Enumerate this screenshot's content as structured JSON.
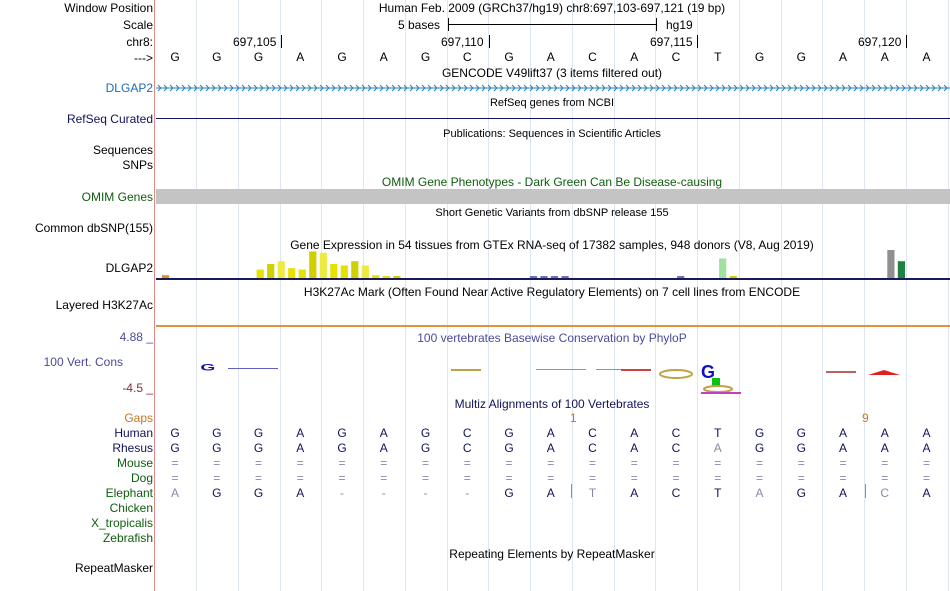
{
  "header": {
    "window_position_label": "Window Position",
    "window_position_value": "Human Feb. 2009 (GRCh37/hg19)   chr8:697,103-697,121 (19 bp)",
    "scale_label": "Scale",
    "scale_value": "5 bases",
    "scale_assembly": "hg19",
    "chr_label": "chr8:",
    "arrow_label": "--->",
    "positions": [
      "697,105",
      "697,110",
      "697,115",
      "697,120"
    ]
  },
  "sequence": [
    "G",
    "G",
    "G",
    "A",
    "G",
    "A",
    "G",
    "C",
    "G",
    "A",
    "C",
    "A",
    "C",
    "T",
    "G",
    "G",
    "A",
    "A",
    "A"
  ],
  "tracks": {
    "gencode": {
      "title": "GENCODE V49lift37 (3 items filtered out)",
      "label": "DLGAP2"
    },
    "refseq": {
      "title": "RefSeq genes from NCBI",
      "label": "RefSeq Curated"
    },
    "publications": {
      "title": "Publications: Sequences in Scientific Articles",
      "label1": "Sequences",
      "label2": "SNPs"
    },
    "omim": {
      "title": "OMIM Gene Phenotypes - Dark Green Can Be Disease-causing",
      "label": "OMIM Genes"
    },
    "dbsnp": {
      "title": "Short Genetic Variants from dbSNP release 155",
      "label": "Common dbSNP(155)"
    },
    "gtex": {
      "title": "Gene Expression in 54 tissues from GTEx RNA-seq of 17382 samples, 948 donors (V8, Aug 2019)",
      "label": "DLGAP2",
      "bars": [
        0.1,
        0,
        0,
        0,
        0,
        0,
        0,
        0,
        0,
        0.3,
        0.5,
        0.6,
        0.35,
        0.3,
        0.95,
        0.9,
        0.5,
        0.45,
        0.6,
        0.45,
        0.1,
        0.05,
        0.05,
        0,
        0,
        0,
        0,
        0,
        0,
        0,
        0,
        0,
        0,
        0,
        0,
        0.05,
        0.05,
        0.05,
        0.05,
        0,
        0,
        0,
        0,
        0,
        0,
        0,
        0,
        0,
        0,
        0.05,
        0,
        0,
        0,
        0.7,
        0.05,
        0,
        0,
        0,
        0,
        0,
        0,
        0,
        0,
        0,
        0,
        0,
        0,
        0,
        0,
        1.0,
        0.6
      ]
    },
    "h3k27ac": {
      "title": "H3K27Ac Mark (Often Found Near Active Regulatory Elements) on 7 cell lines from ENCODE",
      "label": "Layered H3K27Ac"
    },
    "phylop": {
      "title": "100 vertebrates Basewise Conservation by PhyloP",
      "label": "100 Vert. Cons",
      "max": "4.88 _",
      "min": "-4.5 _"
    },
    "multiz": {
      "title": "Multiz Alignments of 100 Vertebrates",
      "gaps_label": "Gaps",
      "gap_1": "1",
      "gap_9": "9"
    },
    "repeatmasker": {
      "title": "Repeating Elements by RepeatMasker",
      "label": "RepeatMasker"
    }
  },
  "species": [
    {
      "name": "Human",
      "bases": [
        "G",
        "G",
        "G",
        "A",
        "G",
        "A",
        "G",
        "C",
        "G",
        "A",
        "C",
        "A",
        "C",
        "T",
        "G",
        "G",
        "A",
        "A",
        "A"
      ]
    },
    {
      "name": "Rhesus",
      "bases": [
        "G",
        "G",
        "G",
        "A",
        "G",
        "A",
        "G",
        "C",
        "G",
        "A",
        "C",
        "A",
        "C",
        "A",
        "G",
        "G",
        "A",
        "A",
        "A"
      ]
    },
    {
      "name": "Mouse",
      "bases": [
        "=",
        "=",
        "=",
        "=",
        "=",
        "=",
        "=",
        "=",
        "=",
        "=",
        "=",
        "=",
        "=",
        "=",
        "=",
        "=",
        "=",
        "=",
        "="
      ]
    },
    {
      "name": "Dog",
      "bases": [
        "=",
        "=",
        "=",
        "=",
        "=",
        "=",
        "=",
        "=",
        "=",
        "=",
        "=",
        "=",
        "=",
        "=",
        "=",
        "=",
        "=",
        "=",
        "="
      ]
    },
    {
      "name": "Elephant",
      "bases": [
        "A",
        "G",
        "G",
        "A",
        "-",
        "-",
        "-",
        "-",
        "G",
        "A",
        "T",
        "A",
        "C",
        "T",
        "A",
        "G",
        "A",
        "C",
        "A"
      ]
    },
    {
      "name": "Chicken",
      "bases": []
    },
    {
      "name": "X_tropicalis",
      "bases": []
    },
    {
      "name": "Zebrafish",
      "bases": []
    }
  ]
}
